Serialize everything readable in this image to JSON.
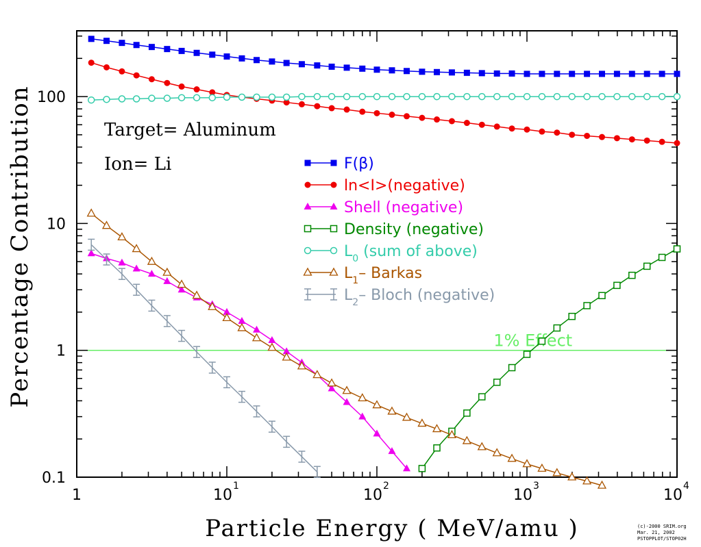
{
  "chart_data": {
    "type": "line",
    "xscale": "log",
    "yscale": "log",
    "xlim": [
      1,
      10000
    ],
    "ylim": [
      0.1,
      330
    ],
    "xlabel": "Particle Energy ( MeV/amu )",
    "ylabel": "Percentage Contribution",
    "x_ticks": [
      {
        "value": 1,
        "base": "1",
        "exp": ""
      },
      {
        "value": 10,
        "base": "10",
        "exp": "1"
      },
      {
        "value": 100,
        "base": "10",
        "exp": "2"
      },
      {
        "value": 1000,
        "base": "10",
        "exp": "3"
      },
      {
        "value": 10000,
        "base": "10",
        "exp": "4"
      }
    ],
    "y_ticks": [
      {
        "value": 0.1,
        "label": "0.1"
      },
      {
        "value": 1,
        "label": "1"
      },
      {
        "value": 10,
        "label": "10"
      },
      {
        "value": 100,
        "label": "100"
      }
    ],
    "annotations": [
      {
        "id": "target",
        "text": "Target= Aluminum"
      },
      {
        "id": "ion",
        "text": "Ion= Li"
      }
    ],
    "reference_line": {
      "y": 1,
      "label": "1% Effect",
      "color": "#66ee66"
    },
    "series": [
      {
        "name": "F(β)",
        "color": "#0000ee",
        "marker": "filled-square",
        "x": [
          1.25,
          1.58,
          2.0,
          2.5,
          3.16,
          4.0,
          5.0,
          6.3,
          8.0,
          10,
          12.6,
          15.8,
          20,
          25,
          31.6,
          40,
          50,
          63,
          80,
          100,
          126,
          158,
          200,
          251,
          316,
          398,
          501,
          631,
          794,
          1000,
          1259,
          1585,
          1995,
          2512,
          3162,
          3981,
          5012,
          6310,
          7943,
          10000
        ],
        "y": [
          285,
          275,
          265,
          255,
          246,
          237,
          229,
          221,
          214,
          207,
          200,
          194,
          189,
          184,
          180,
          176,
          172,
          169,
          166,
          163,
          161,
          159,
          157,
          156,
          155,
          154,
          153,
          152,
          152,
          151,
          151,
          151,
          151,
          151,
          151,
          151,
          151,
          151,
          151,
          151
        ]
      },
      {
        "name": "ln<I>(negative)",
        "color": "#ee0000",
        "marker": "filled-circle",
        "x": [
          1.25,
          1.58,
          2.0,
          2.5,
          3.16,
          4.0,
          5.0,
          6.3,
          8.0,
          10,
          12.6,
          15.8,
          20,
          25,
          31.6,
          40,
          50,
          63,
          80,
          100,
          126,
          158,
          200,
          251,
          316,
          398,
          501,
          631,
          794,
          1000,
          1259,
          1585,
          1995,
          2512,
          3162,
          3981,
          5012,
          6310,
          7943,
          10000
        ],
        "y": [
          185,
          170,
          158,
          147,
          137,
          128,
          120,
          114,
          108,
          103,
          99,
          96,
          93,
          90,
          87,
          84,
          81,
          79,
          76,
          74,
          72,
          70,
          68,
          66,
          64,
          62,
          60,
          58,
          56,
          55,
          53,
          52,
          50,
          49,
          48,
          47,
          46,
          45,
          44,
          43
        ]
      },
      {
        "name": "Shell (negative)",
        "color": "#ee00ee",
        "marker": "filled-triangle",
        "x": [
          1.25,
          1.58,
          2.0,
          2.5,
          3.16,
          4.0,
          5.0,
          6.3,
          8.0,
          10,
          12.6,
          15.8,
          20,
          25,
          31.6,
          40,
          50,
          63,
          80,
          100,
          126,
          158
        ],
        "y": [
          5.8,
          5.3,
          4.9,
          4.4,
          4.0,
          3.5,
          3.0,
          2.6,
          2.3,
          2.0,
          1.7,
          1.45,
          1.2,
          0.98,
          0.8,
          0.64,
          0.5,
          0.39,
          0.3,
          0.22,
          0.16,
          0.117
        ]
      },
      {
        "name": "Density (negative)",
        "color": "#008800",
        "marker": "open-square",
        "x": [
          200,
          251,
          316,
          398,
          501,
          631,
          794,
          1000,
          1259,
          1585,
          1995,
          2512,
          3162,
          3981,
          5012,
          6310,
          7943,
          10000
        ],
        "y": [
          0.117,
          0.17,
          0.23,
          0.32,
          0.43,
          0.56,
          0.73,
          0.93,
          1.18,
          1.5,
          1.85,
          2.25,
          2.7,
          3.25,
          3.9,
          4.6,
          5.4,
          6.3
        ]
      },
      {
        "name": "L0 (sum of above)",
        "label_main": "L",
        "label_sub": "0",
        "label_rest": " (sum of above)",
        "color": "#33ccaa",
        "marker": "open-circle",
        "x": [
          1.25,
          1.58,
          2.0,
          2.5,
          3.16,
          4.0,
          5.0,
          6.3,
          8.0,
          10,
          12.6,
          15.8,
          20,
          25,
          31.6,
          40,
          50,
          63,
          80,
          100,
          126,
          158,
          200,
          251,
          316,
          398,
          501,
          631,
          794,
          1000,
          1259,
          1585,
          1995,
          2512,
          3162,
          3981,
          5012,
          6310,
          7943,
          10000
        ],
        "y": [
          94,
          95,
          96,
          96,
          97,
          97,
          98,
          98,
          98,
          99,
          99,
          99,
          99,
          99,
          100,
          100,
          100,
          100,
          100,
          100,
          100,
          100,
          100,
          100,
          100,
          100,
          100,
          100,
          100,
          100,
          100,
          100,
          100,
          100,
          100,
          100,
          100,
          100,
          100,
          100
        ]
      },
      {
        "name": "L1- Barkas",
        "label_main": "L",
        "label_sub": "1",
        "label_rest": "– Barkas",
        "color": "#aa5500",
        "marker": "open-triangle",
        "x": [
          1.25,
          1.58,
          2.0,
          2.5,
          3.16,
          4.0,
          5.0,
          6.3,
          8.0,
          10,
          12.6,
          15.8,
          20,
          25,
          31.6,
          40,
          50,
          63,
          80,
          100,
          126,
          158,
          200,
          251,
          316,
          398,
          501,
          631,
          794,
          1000,
          1259,
          1585,
          1995,
          2512,
          3162
        ],
        "y": [
          12,
          9.6,
          7.8,
          6.3,
          5.0,
          4.1,
          3.3,
          2.7,
          2.2,
          1.8,
          1.5,
          1.25,
          1.05,
          0.88,
          0.75,
          0.64,
          0.55,
          0.48,
          0.42,
          0.37,
          0.33,
          0.295,
          0.265,
          0.24,
          0.215,
          0.193,
          0.173,
          0.155,
          0.14,
          0.127,
          0.117,
          0.108,
          0.1,
          0.093,
          0.086
        ]
      },
      {
        "name": "L2- Bloch (negative)",
        "label_main": "L",
        "label_sub": "2",
        "label_rest": "– Bloch (negative)",
        "color": "#8899aa",
        "marker": "error-bar",
        "x": [
          1.25,
          1.58,
          2.0,
          2.5,
          3.16,
          4.0,
          5.0,
          6.3,
          8.0,
          10,
          12.6,
          15.8,
          20,
          25,
          31.6,
          40
        ],
        "y": [
          6.8,
          5.2,
          4.0,
          3.0,
          2.25,
          1.7,
          1.3,
          0.97,
          0.73,
          0.56,
          0.43,
          0.33,
          0.25,
          0.19,
          0.145,
          0.11
        ]
      }
    ],
    "legend_placement": "center-left"
  },
  "credit": {
    "line1": "(c)-2000 SRIM.org",
    "line2": "Mar. 21, 2002",
    "line3": "PSTOPPLOT/STOP02H"
  }
}
